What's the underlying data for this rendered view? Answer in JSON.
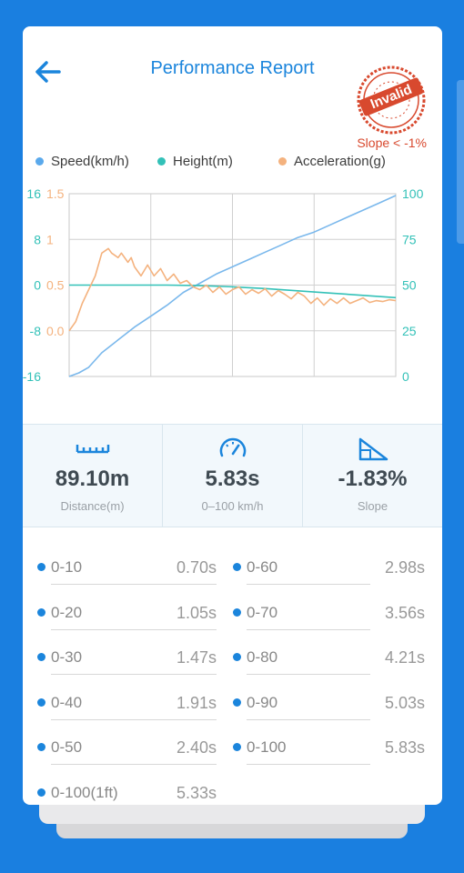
{
  "header": {
    "title": "Performance Report",
    "stamp_text": "Invalid",
    "slope_note": "Slope < -1%"
  },
  "legend": [
    {
      "label": "Speed(km/h)",
      "color": "#5aa9ec"
    },
    {
      "label": "Height(m)",
      "color": "#33c1b8"
    },
    {
      "label": "Acceleration(g)",
      "color": "#f4b27e"
    }
  ],
  "chart_data": {
    "type": "line",
    "grid": true,
    "axes": {
      "height_left": {
        "ticks": [
          "16",
          "8",
          "0",
          "-8",
          "-16"
        ],
        "ylim": [
          -16,
          16
        ],
        "color": "#33c1b8"
      },
      "accel_left": {
        "ticks": [
          "1.5",
          "1",
          "0.5",
          "0.0"
        ],
        "ylim": [
          -0.5,
          1.5
        ],
        "color": "#f4b27e"
      },
      "speed_right": {
        "ticks": [
          "100",
          "75",
          "50",
          "25",
          "0"
        ],
        "ylim": [
          0,
          100
        ],
        "color": "#33c1b8"
      }
    },
    "series": [
      {
        "name": "Speed(km/h)",
        "axis": "speed_right",
        "color": "#7ab8ec",
        "x": [
          0,
          0.03,
          0.06,
          0.1,
          0.15,
          0.2,
          0.25,
          0.3,
          0.35,
          0.4,
          0.45,
          0.5,
          0.55,
          0.6,
          0.65,
          0.7,
          0.75,
          0.8,
          0.85,
          0.9,
          0.95,
          1
        ],
        "values": [
          0,
          2,
          5,
          13,
          20,
          27,
          33,
          39,
          46,
          51,
          56,
          60,
          64,
          68,
          72,
          76,
          79,
          83,
          87,
          91,
          95,
          99
        ]
      },
      {
        "name": "Height(m)",
        "axis": "height_left",
        "color": "#33c1b8",
        "x": [
          0,
          0.1,
          0.2,
          0.3,
          0.4,
          0.5,
          0.6,
          0.7,
          0.8,
          0.9,
          1
        ],
        "values": [
          0,
          0,
          0,
          0,
          -0.1,
          -0.3,
          -0.6,
          -1.0,
          -1.4,
          -1.8,
          -2.2
        ]
      },
      {
        "name": "Acceleration(g)",
        "axis": "accel_left",
        "color": "#f4b27e",
        "x": [
          0,
          0.02,
          0.04,
          0.06,
          0.08,
          0.1,
          0.12,
          0.13,
          0.15,
          0.16,
          0.18,
          0.19,
          0.2,
          0.22,
          0.24,
          0.26,
          0.28,
          0.3,
          0.32,
          0.34,
          0.36,
          0.38,
          0.4,
          0.42,
          0.44,
          0.46,
          0.48,
          0.5,
          0.52,
          0.54,
          0.56,
          0.58,
          0.6,
          0.62,
          0.64,
          0.66,
          0.68,
          0.7,
          0.72,
          0.74,
          0.76,
          0.78,
          0.8,
          0.82,
          0.84,
          0.86,
          0.88,
          0.9,
          0.92,
          0.94,
          0.96,
          0.98,
          1
        ],
        "values": [
          0.0,
          0.1,
          0.3,
          0.45,
          0.6,
          0.85,
          0.9,
          0.85,
          0.8,
          0.85,
          0.75,
          0.8,
          0.7,
          0.6,
          0.72,
          0.6,
          0.68,
          0.55,
          0.62,
          0.52,
          0.55,
          0.48,
          0.45,
          0.5,
          0.42,
          0.48,
          0.4,
          0.45,
          0.48,
          0.4,
          0.45,
          0.41,
          0.46,
          0.38,
          0.44,
          0.4,
          0.35,
          0.42,
          0.38,
          0.3,
          0.36,
          0.28,
          0.35,
          0.3,
          0.36,
          0.3,
          0.33,
          0.36,
          0.31,
          0.33,
          0.32,
          0.34,
          0.33
        ]
      }
    ]
  },
  "stats": [
    {
      "value": "89.10m",
      "label": "Distance(m)",
      "icon": "ruler-icon"
    },
    {
      "value": "5.83s",
      "label": "0–100 km/h",
      "icon": "speedometer-icon"
    },
    {
      "value": "-1.83%",
      "label": "Slope",
      "icon": "slope-icon"
    }
  ],
  "splits": [
    {
      "label": "0-10",
      "value": "0.70s"
    },
    {
      "label": "0-60",
      "value": "2.98s"
    },
    {
      "label": "0-20",
      "value": "1.05s"
    },
    {
      "label": "0-70",
      "value": "3.56s"
    },
    {
      "label": "0-30",
      "value": "1.47s"
    },
    {
      "label": "0-80",
      "value": "4.21s"
    },
    {
      "label": "0-40",
      "value": "1.91s"
    },
    {
      "label": "0-90",
      "value": "5.03s"
    },
    {
      "label": "0-50",
      "value": "2.40s"
    },
    {
      "label": "0-100",
      "value": "5.83s"
    },
    {
      "label": "0-100(1ft)",
      "value": "5.33s"
    }
  ]
}
